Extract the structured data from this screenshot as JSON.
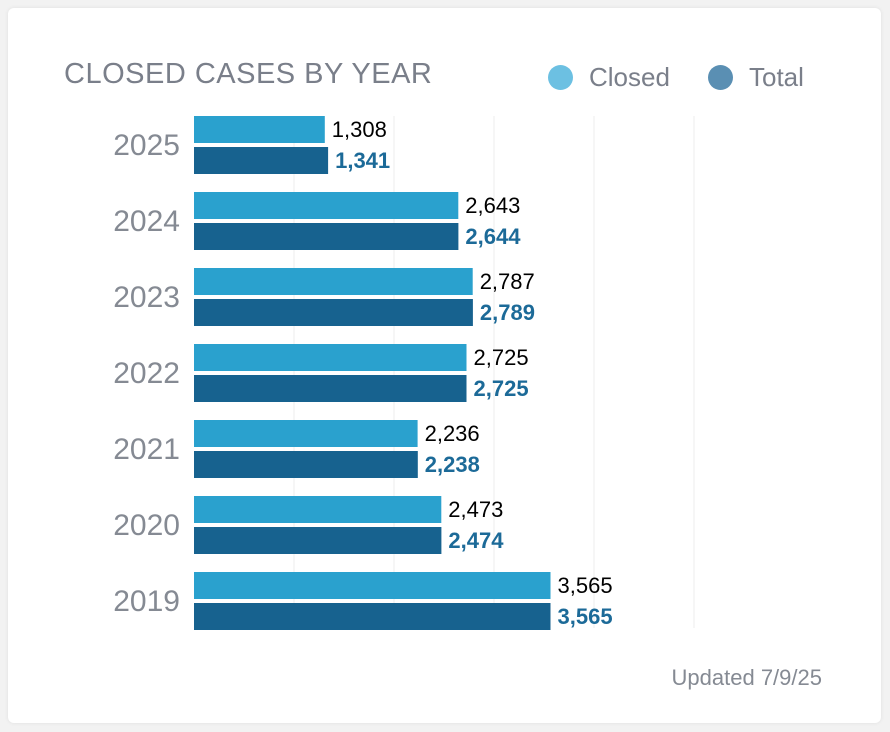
{
  "chart_data": {
    "type": "bar",
    "orientation": "horizontal",
    "title": "CLOSED CASES BY YEAR",
    "categories": [
      "2025",
      "2024",
      "2023",
      "2022",
      "2021",
      "2020",
      "2019"
    ],
    "series": [
      {
        "name": "Closed",
        "color": "#2aa1ce",
        "label_color": "#000000",
        "values": [
          1308,
          2643,
          2787,
          2725,
          2236,
          2473,
          3565
        ]
      },
      {
        "name": "Total",
        "color": "#17628f",
        "label_color": "#1c6a98",
        "values": [
          1341,
          2644,
          2789,
          2725,
          2238,
          2474,
          3565
        ]
      }
    ],
    "data_labels": [
      [
        "1,308",
        "2,643",
        "2,787",
        "2,725",
        "2,236",
        "2,473",
        "3,565"
      ],
      [
        "1,341",
        "2,644",
        "2,789",
        "2,725",
        "2,238",
        "2,474",
        "3,565"
      ]
    ],
    "xlim": [
      0,
      5000
    ],
    "grid": true,
    "legend_position": "top-right",
    "legend_colors": [
      "#6cc0e2",
      "#5a8fb3"
    ]
  },
  "footer": {
    "updated": "Updated 7/9/25"
  }
}
